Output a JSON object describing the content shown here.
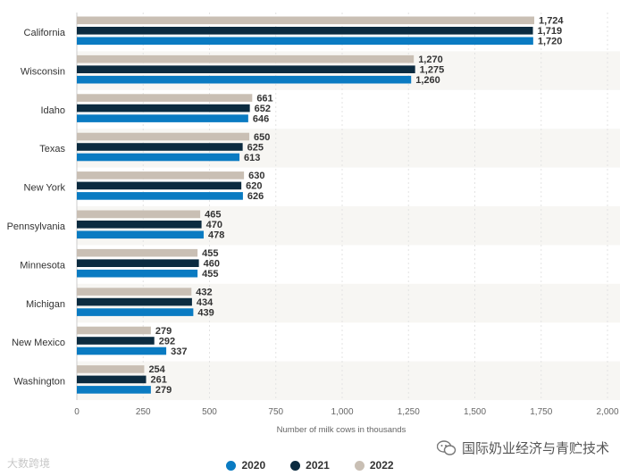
{
  "chart_data": {
    "type": "bar",
    "orientation": "horizontal",
    "title": "",
    "xlabel": "Number of milk cows in thousands",
    "ylabel": "",
    "xlim": [
      0,
      2000
    ],
    "xticks": [
      0,
      250,
      500,
      750,
      1000,
      1250,
      1500,
      1750,
      2000
    ],
    "xtick_labels": [
      "0",
      "250",
      "500",
      "750",
      "1,000",
      "1,250",
      "1,500",
      "1,750",
      "2,000"
    ],
    "categories": [
      "California",
      "Wisconsin",
      "Idaho",
      "Texas",
      "New York",
      "Pennsylvania",
      "Minnesota",
      "Michigan",
      "New Mexico",
      "Washington"
    ],
    "series": [
      {
        "name": "2022",
        "color": "#c9bfb4",
        "values": [
          1724,
          1270,
          661,
          650,
          630,
          465,
          455,
          432,
          279,
          254
        ],
        "labels": [
          "1,724",
          "1,270",
          "661",
          "650",
          "630",
          "465",
          "455",
          "432",
          "279",
          "254"
        ]
      },
      {
        "name": "2021",
        "color": "#0b2b40",
        "values": [
          1719,
          1275,
          652,
          625,
          620,
          470,
          460,
          434,
          292,
          261
        ],
        "labels": [
          "1,719",
          "1,275",
          "652",
          "625",
          "620",
          "470",
          "460",
          "434",
          "292",
          "261"
        ]
      },
      {
        "name": "2020",
        "color": "#0a7bc2",
        "values": [
          1720,
          1260,
          646,
          613,
          626,
          478,
          455,
          439,
          337,
          279
        ],
        "labels": [
          "1,720",
          "1,260",
          "646",
          "613",
          "626",
          "478",
          "455",
          "439",
          "337",
          "279"
        ]
      }
    ],
    "legend": {
      "position": "bottom",
      "items": [
        {
          "label": "2020",
          "color": "#0a7bc2"
        },
        {
          "label": "2021",
          "color": "#0b2b40"
        },
        {
          "label": "2022",
          "color": "#c9bfb4"
        }
      ]
    },
    "grid": true
  },
  "watermarks": {
    "left": "大数跨境",
    "right": "国际奶业经济与青贮技术"
  }
}
